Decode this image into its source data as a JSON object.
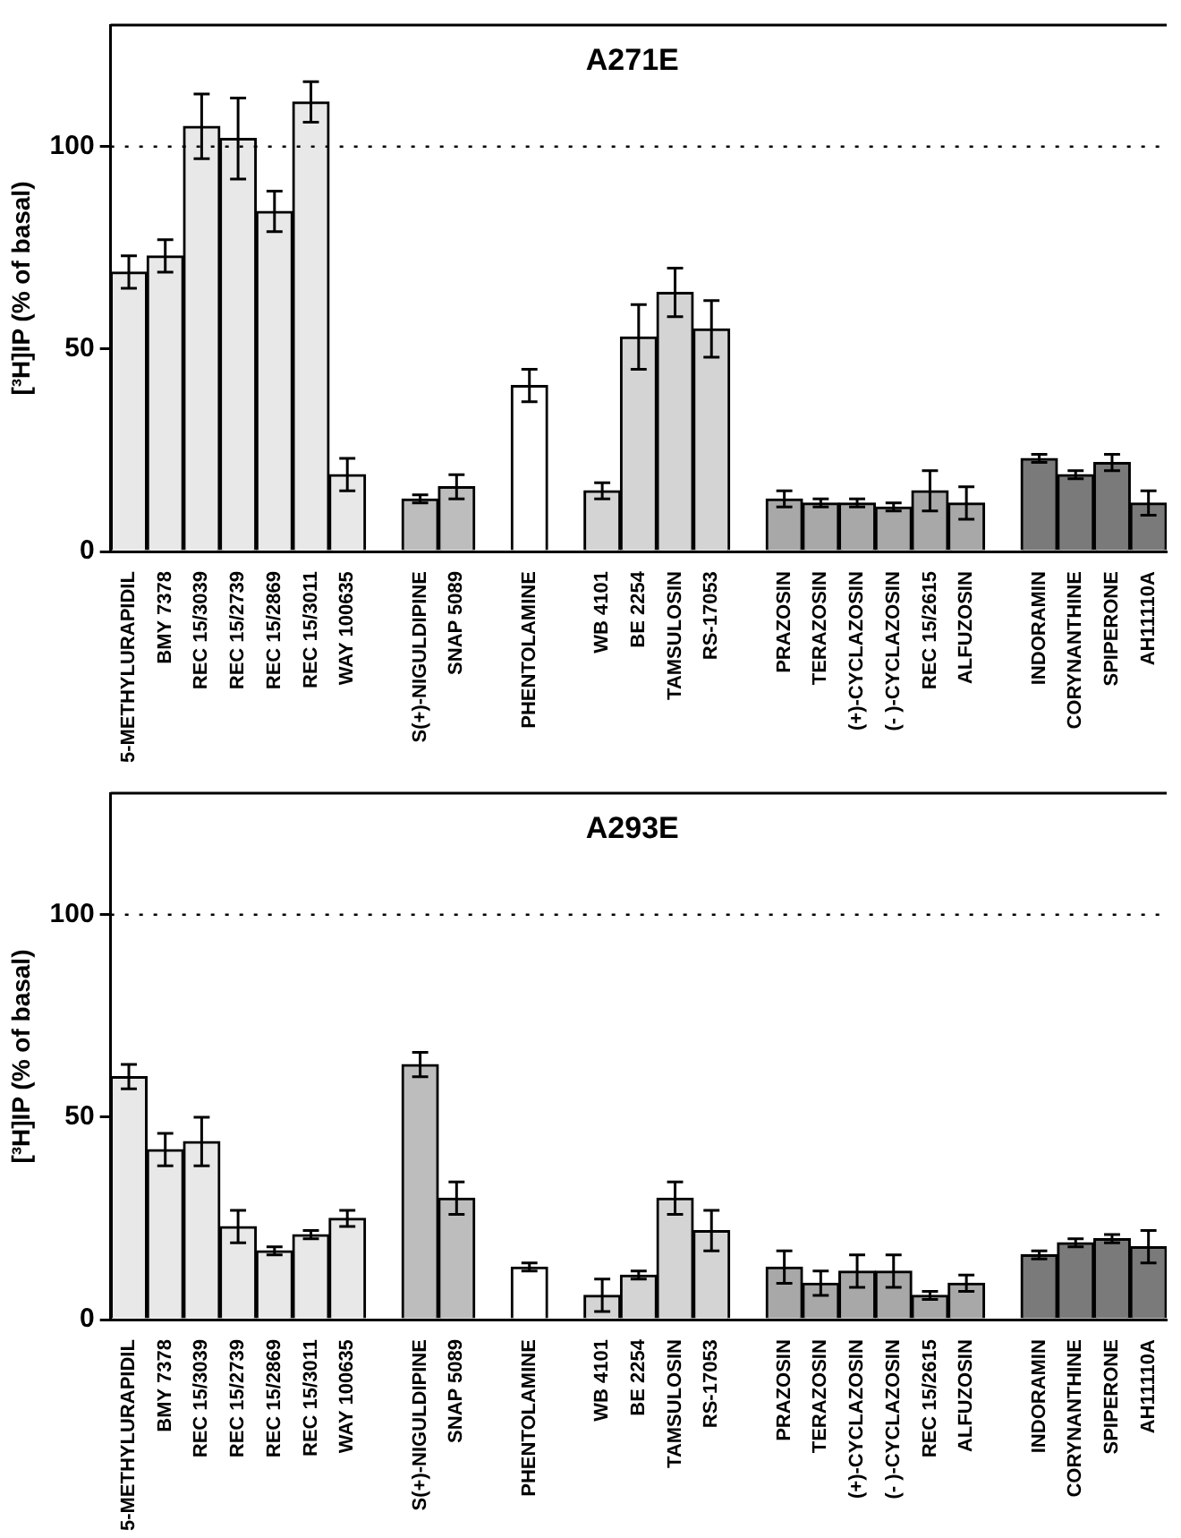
{
  "chart_data": [
    {
      "type": "bar",
      "title": "A271E",
      "ylabel": "[³H]IP (% of basal)",
      "categories": [
        "5-METHYLURAPIDIL",
        "BMY 7378",
        "REC 15/3039",
        "REC 15/2739",
        "REC 15/2869",
        "REC 15/3011",
        "WAY 100635",
        null,
        "S(+)-NIGULDIPINE",
        "SNAP 5089",
        null,
        "PHENTOLAMINE",
        null,
        "WB 4101",
        "BE 2254",
        "TAMSULOSIN",
        "RS-17053",
        null,
        "PRAZOSIN",
        "TERAZOSIN",
        "(+)-CYCLAZOSIN",
        "(- )-CYCLAZOSIN",
        "REC 15/2615",
        "ALFUZOSIN",
        null,
        "INDORAMIN",
        "CORYNANTHINE",
        "SPIPERONE",
        "AH11110A"
      ],
      "values": [
        69,
        73,
        105,
        102,
        84,
        111,
        19,
        null,
        13,
        16,
        null,
        41,
        null,
        15,
        53,
        64,
        55,
        null,
        13,
        12,
        12,
        11,
        15,
        12,
        null,
        23,
        19,
        22,
        12
      ],
      "errors": [
        4,
        4,
        8,
        10,
        5,
        5,
        4,
        null,
        1,
        3,
        null,
        4,
        null,
        2,
        8,
        6,
        7,
        null,
        2,
        1,
        1,
        1,
        5,
        4,
        null,
        1,
        1,
        2,
        3
      ],
      "colors": [
        "#e8e8e8",
        "#e8e8e8",
        "#e8e8e8",
        "#e8e8e8",
        "#e8e8e8",
        "#e8e8e8",
        "#e8e8e8",
        null,
        "#bdbdbd",
        "#bdbdbd",
        null,
        "#ffffff",
        null,
        "#d4d4d4",
        "#d4d4d4",
        "#d4d4d4",
        "#d4d4d4",
        null,
        "#a8a8a8",
        "#a8a8a8",
        "#a8a8a8",
        "#a8a8a8",
        "#a8a8a8",
        "#a8a8a8",
        null,
        "#7a7a7a",
        "#7a7a7a",
        "#7a7a7a",
        "#7a7a7a"
      ],
      "ylim": [
        0,
        130
      ],
      "yticks": [
        0,
        50,
        100
      ],
      "ref_lines": [
        {
          "axis": "y",
          "value": 100,
          "line_style": "dotted",
          "color": "#000000"
        }
      ]
    },
    {
      "type": "bar",
      "title": "A293E",
      "ylabel": "[³H]IP (% of basal)",
      "categories": [
        "5-METHYLURAPIDIL",
        "BMY 7378",
        "REC 15/3039",
        "REC 15/2739",
        "REC 15/2869",
        "REC 15/3011",
        "WAY 100635",
        null,
        "S(+)-NIGULDIPINE",
        "SNAP 5089",
        null,
        "PHENTOLAMINE",
        null,
        "WB 4101",
        "BE 2254",
        "TAMSULOSIN",
        "RS-17053",
        null,
        "PRAZOSIN",
        "TERAZOSIN",
        "(+)-CYCLAZOSIN",
        "(- )-CYCLAZOSIN",
        "REC 15/2615",
        "ALFUZOSIN",
        null,
        "INDORAMIN",
        "CORYNANTHINE",
        "SPIPERONE",
        "AH11110A"
      ],
      "values": [
        60,
        42,
        44,
        23,
        17,
        21,
        25,
        null,
        63,
        30,
        null,
        13,
        null,
        6,
        11,
        30,
        22,
        null,
        13,
        9,
        12,
        12,
        6,
        9,
        null,
        16,
        19,
        20,
        18
      ],
      "errors": [
        3,
        4,
        6,
        4,
        1,
        1,
        2,
        null,
        3,
        4,
        null,
        1,
        null,
        4,
        1,
        4,
        5,
        null,
        4,
        3,
        4,
        4,
        1,
        2,
        null,
        1,
        1,
        1,
        4
      ],
      "colors": [
        "#e8e8e8",
        "#e8e8e8",
        "#e8e8e8",
        "#e8e8e8",
        "#e8e8e8",
        "#e8e8e8",
        "#e8e8e8",
        null,
        "#bdbdbd",
        "#bdbdbd",
        null,
        "#ffffff",
        null,
        "#d4d4d4",
        "#d4d4d4",
        "#d4d4d4",
        "#d4d4d4",
        null,
        "#a8a8a8",
        "#a8a8a8",
        "#a8a8a8",
        "#a8a8a8",
        "#a8a8a8",
        "#a8a8a8",
        null,
        "#7a7a7a",
        "#7a7a7a",
        "#7a7a7a",
        "#7a7a7a"
      ],
      "ylim": [
        0,
        130
      ],
      "yticks": [
        0,
        50,
        100
      ],
      "ref_lines": [
        {
          "axis": "y",
          "value": 100,
          "line_style": "dotted",
          "color": "#000000"
        }
      ]
    }
  ]
}
